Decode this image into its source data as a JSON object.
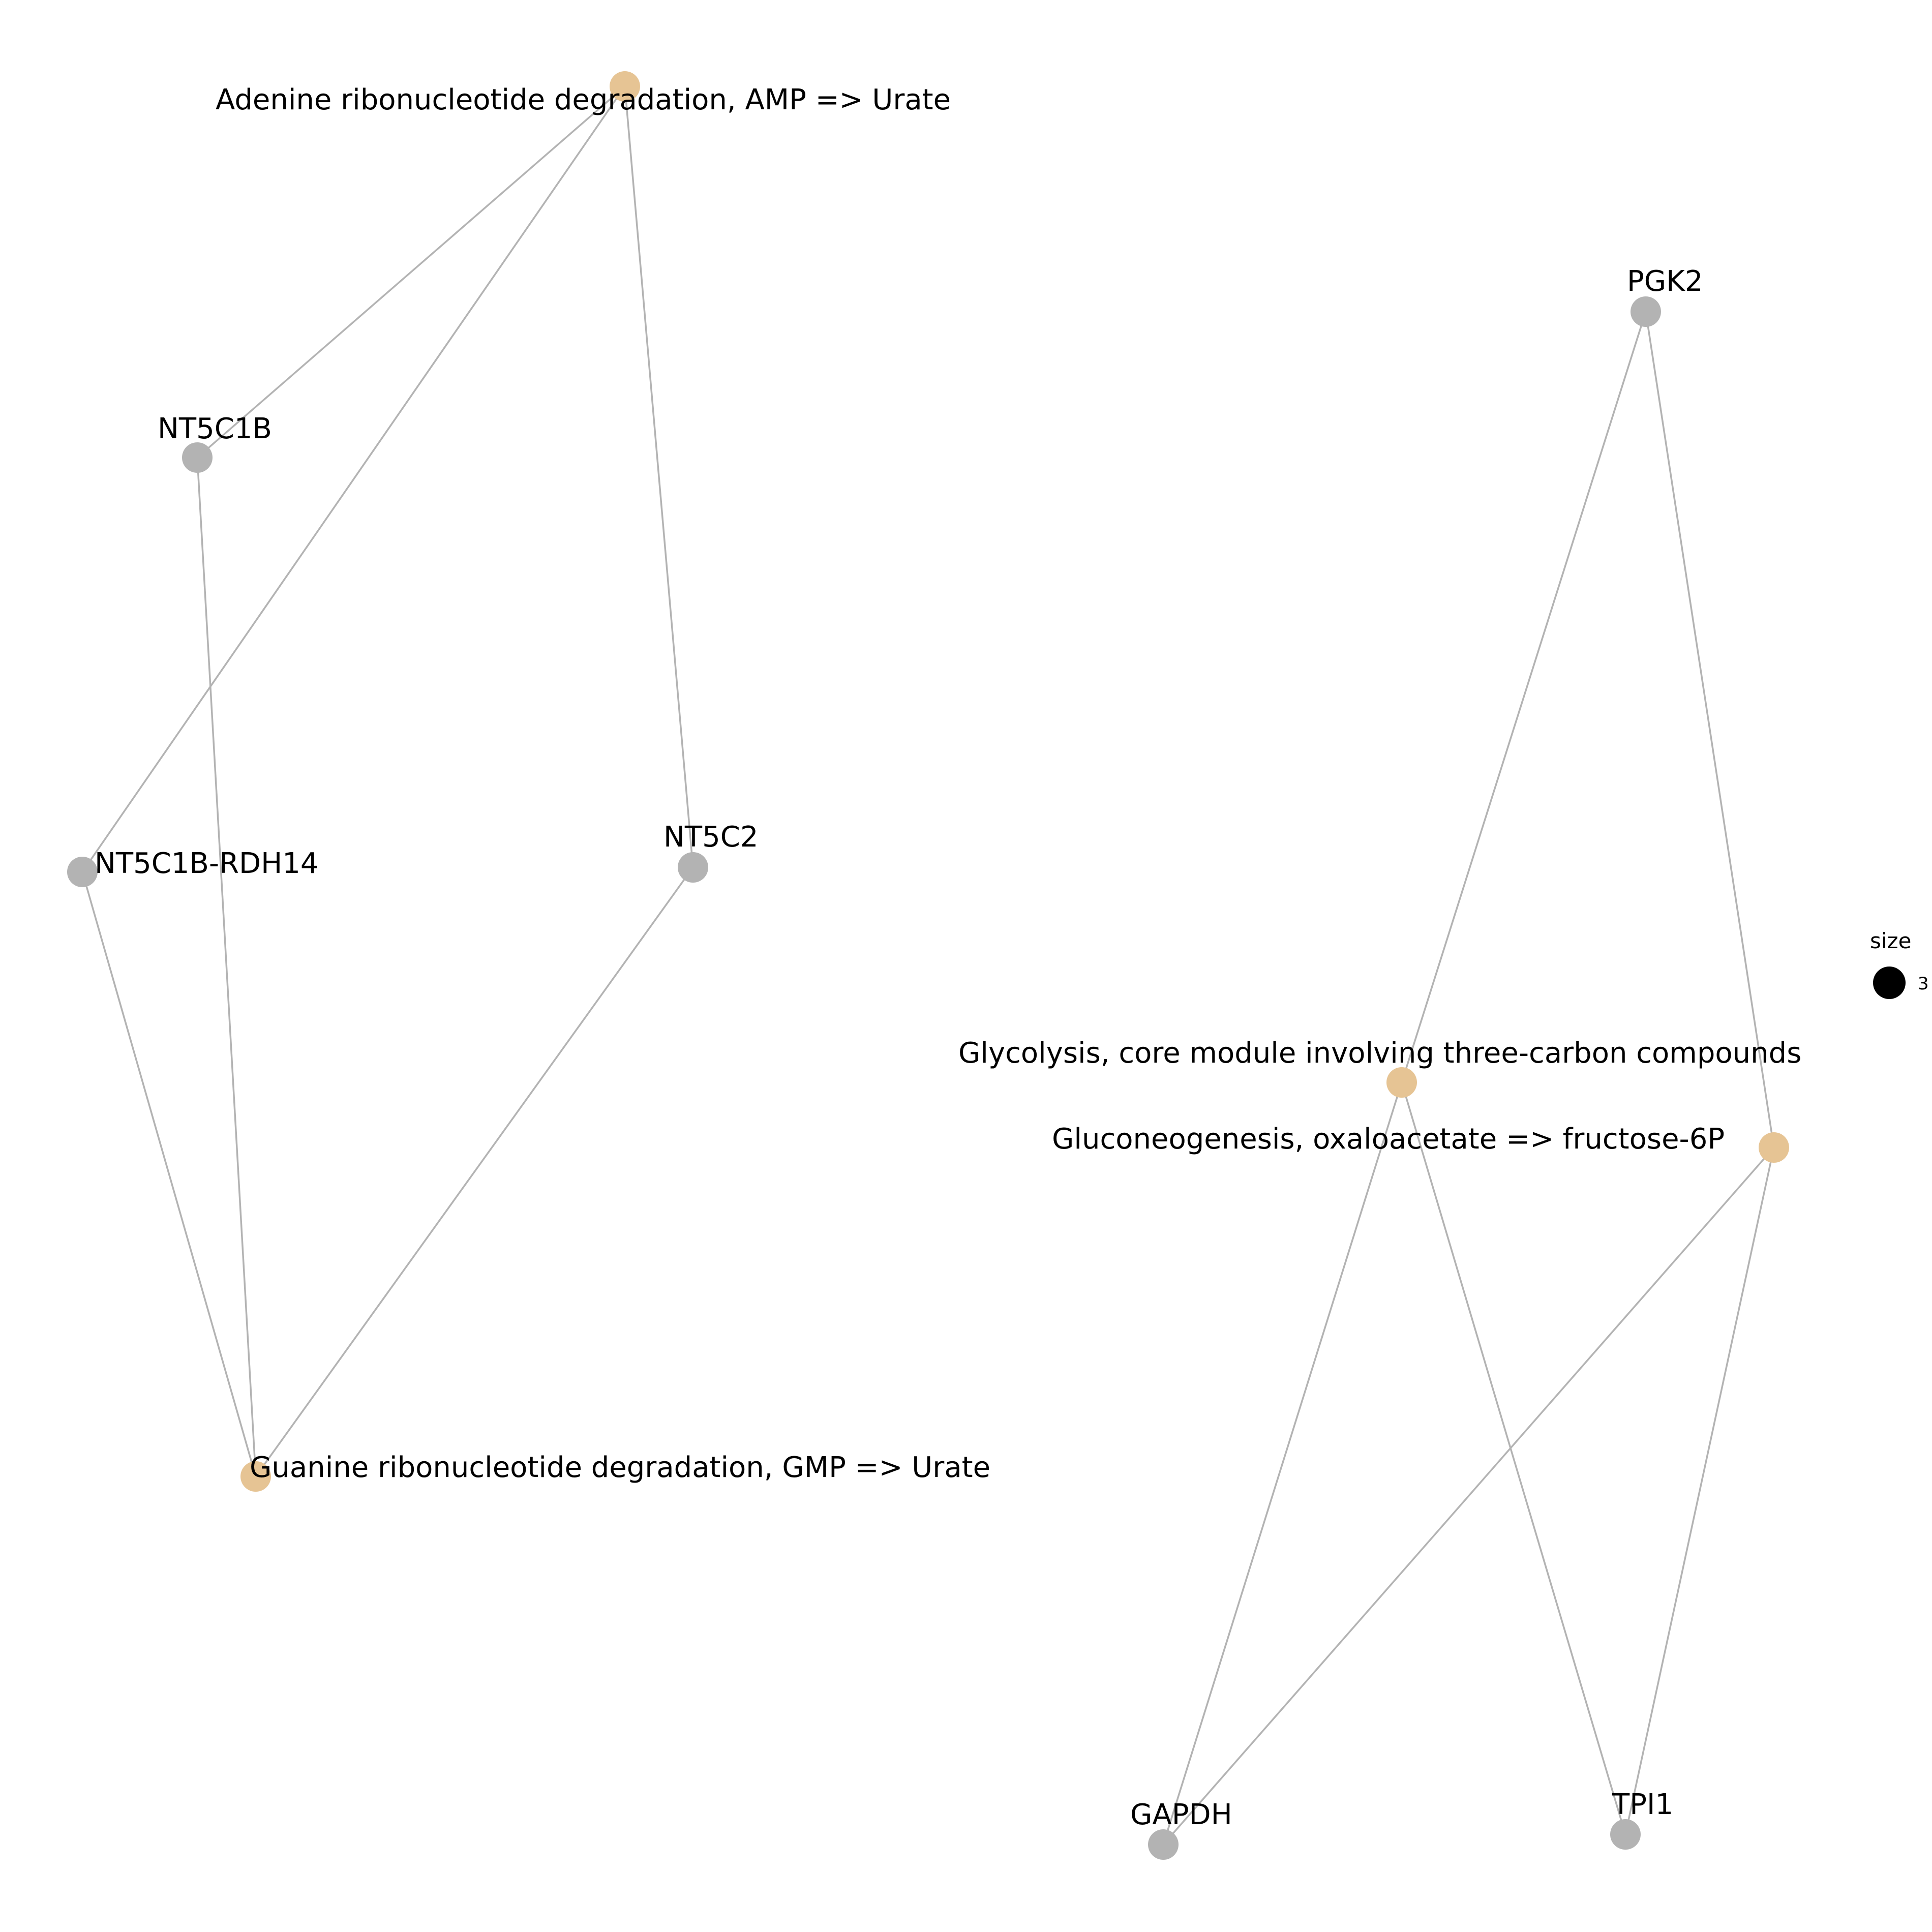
{
  "colors": {
    "category_node": "#E6C494",
    "gene_node": "#B3B3B3",
    "edge": "#B3B3B3",
    "legend_marker": "#000000"
  },
  "nodes": [
    {
      "id": "amp",
      "type": "category",
      "label": "Adenine ribonucleotide degradation, AMP => Urate"
    },
    {
      "id": "gmp",
      "type": "category",
      "label": "Guanine ribonucleotide degradation, GMP => Urate"
    },
    {
      "id": "glyc",
      "type": "category",
      "label": "Glycolysis, core module involving three-carbon compounds"
    },
    {
      "id": "gluc",
      "type": "category",
      "label": "Gluconeogenesis, oxaloacetate => fructose-6P"
    },
    {
      "id": "nt5c1b",
      "type": "gene",
      "label": "NT5C1B"
    },
    {
      "id": "nt5c1b_rdh14",
      "type": "gene",
      "label": "NT5C1B-RDH14"
    },
    {
      "id": "nt5c2",
      "type": "gene",
      "label": "NT5C2"
    },
    {
      "id": "pgk2",
      "type": "gene",
      "label": "PGK2"
    },
    {
      "id": "gapdh",
      "type": "gene",
      "label": "GAPDH"
    },
    {
      "id": "tpi1",
      "type": "gene",
      "label": "TPI1"
    }
  ],
  "edges": [
    [
      "amp",
      "nt5c1b"
    ],
    [
      "amp",
      "nt5c1b_rdh14"
    ],
    [
      "amp",
      "nt5c2"
    ],
    [
      "nt5c1b",
      "gmp"
    ],
    [
      "nt5c1b_rdh14",
      "gmp"
    ],
    [
      "nt5c2",
      "gmp"
    ],
    [
      "pgk2",
      "glyc"
    ],
    [
      "pgk2",
      "gluc"
    ],
    [
      "glyc",
      "gapdh"
    ],
    [
      "glyc",
      "tpi1"
    ],
    [
      "gluc",
      "gapdh"
    ],
    [
      "gluc",
      "tpi1"
    ]
  ],
  "legend": {
    "title": "size",
    "items": [
      {
        "label": "3"
      }
    ]
  }
}
